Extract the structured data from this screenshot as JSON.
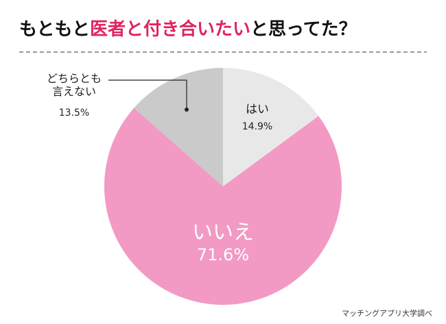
{
  "chart_data": {
    "type": "pie",
    "title_segments": [
      {
        "text": "もともと",
        "color": "#111111"
      },
      {
        "text": "医者と付き合いたい",
        "color": "#e0245e"
      },
      {
        "text": "と思ってた？",
        "color": "#111111"
      }
    ],
    "categories": [
      "はい",
      "いいえ",
      "どちらとも\n言えない"
    ],
    "values": [
      14.9,
      71.6,
      13.5
    ],
    "value_labels": [
      "14.9%",
      "71.6%",
      "13.5%"
    ],
    "colors": [
      "#e8e8e8",
      "#f29ac4",
      "#cacaca"
    ],
    "source": "マッチングアプリ大学調べ"
  }
}
